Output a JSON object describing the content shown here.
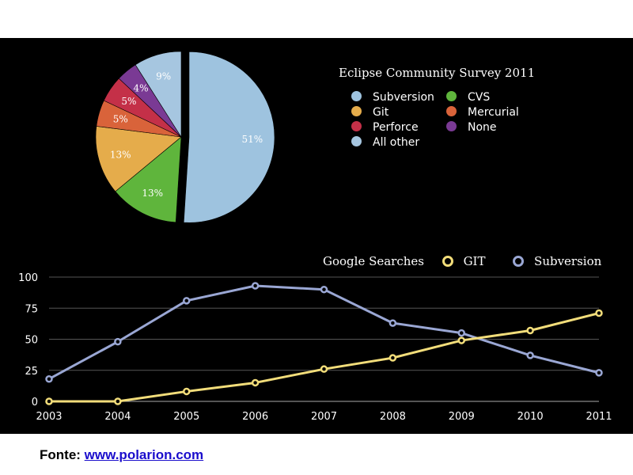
{
  "footer": {
    "label": "Fonte:",
    "link_text": "www.polarion.com"
  },
  "chart_data": [
    {
      "type": "pie",
      "title": "Eclipse Community Survey 2011",
      "slices": [
        {
          "name": "Subversion",
          "value": 51,
          "label": "51%",
          "color": "#9ec3df"
        },
        {
          "name": "CVS",
          "value": 13,
          "label": "13%",
          "color": "#5fb53c"
        },
        {
          "name": "Git",
          "value": 13,
          "label": "13%",
          "color": "#e5ac4b"
        },
        {
          "name": "Mercurial",
          "value": 5,
          "label": "5%",
          "color": "#d9633a"
        },
        {
          "name": "Perforce",
          "value": 5,
          "label": "5%",
          "color": "#c43048"
        },
        {
          "name": "None",
          "value": 4,
          "label": "4%",
          "color": "#7a3a94"
        },
        {
          "name": "All other",
          "value": 9,
          "label": "9%",
          "color": "#a6c6e0"
        }
      ],
      "legend": [
        {
          "name": "Subversion",
          "color": "#9ec3df"
        },
        {
          "name": "CVS",
          "color": "#5fb53c"
        },
        {
          "name": "Git",
          "color": "#e5ac4b"
        },
        {
          "name": "Mercurial",
          "color": "#d9633a"
        },
        {
          "name": "Perforce",
          "color": "#c43048"
        },
        {
          "name": "None",
          "color": "#7a3a94"
        },
        {
          "name": "All other",
          "color": "#a6c6e0"
        }
      ]
    },
    {
      "type": "line",
      "title": "Google Searches",
      "x": [
        "2003",
        "2004",
        "2005",
        "2006",
        "2007",
        "2008",
        "2009",
        "2010",
        "2011"
      ],
      "ylim": [
        0,
        100
      ],
      "yticks": [
        0,
        25,
        50,
        75,
        100
      ],
      "grid": true,
      "series": [
        {
          "name": "GIT",
          "color": "#f2dd7a",
          "values": [
            0,
            0,
            8,
            15,
            26,
            35,
            49,
            57,
            71
          ]
        },
        {
          "name": "Subversion",
          "color": "#9aa7d4",
          "values": [
            18,
            48,
            81,
            93,
            90,
            63,
            55,
            37,
            23
          ]
        }
      ]
    }
  ]
}
